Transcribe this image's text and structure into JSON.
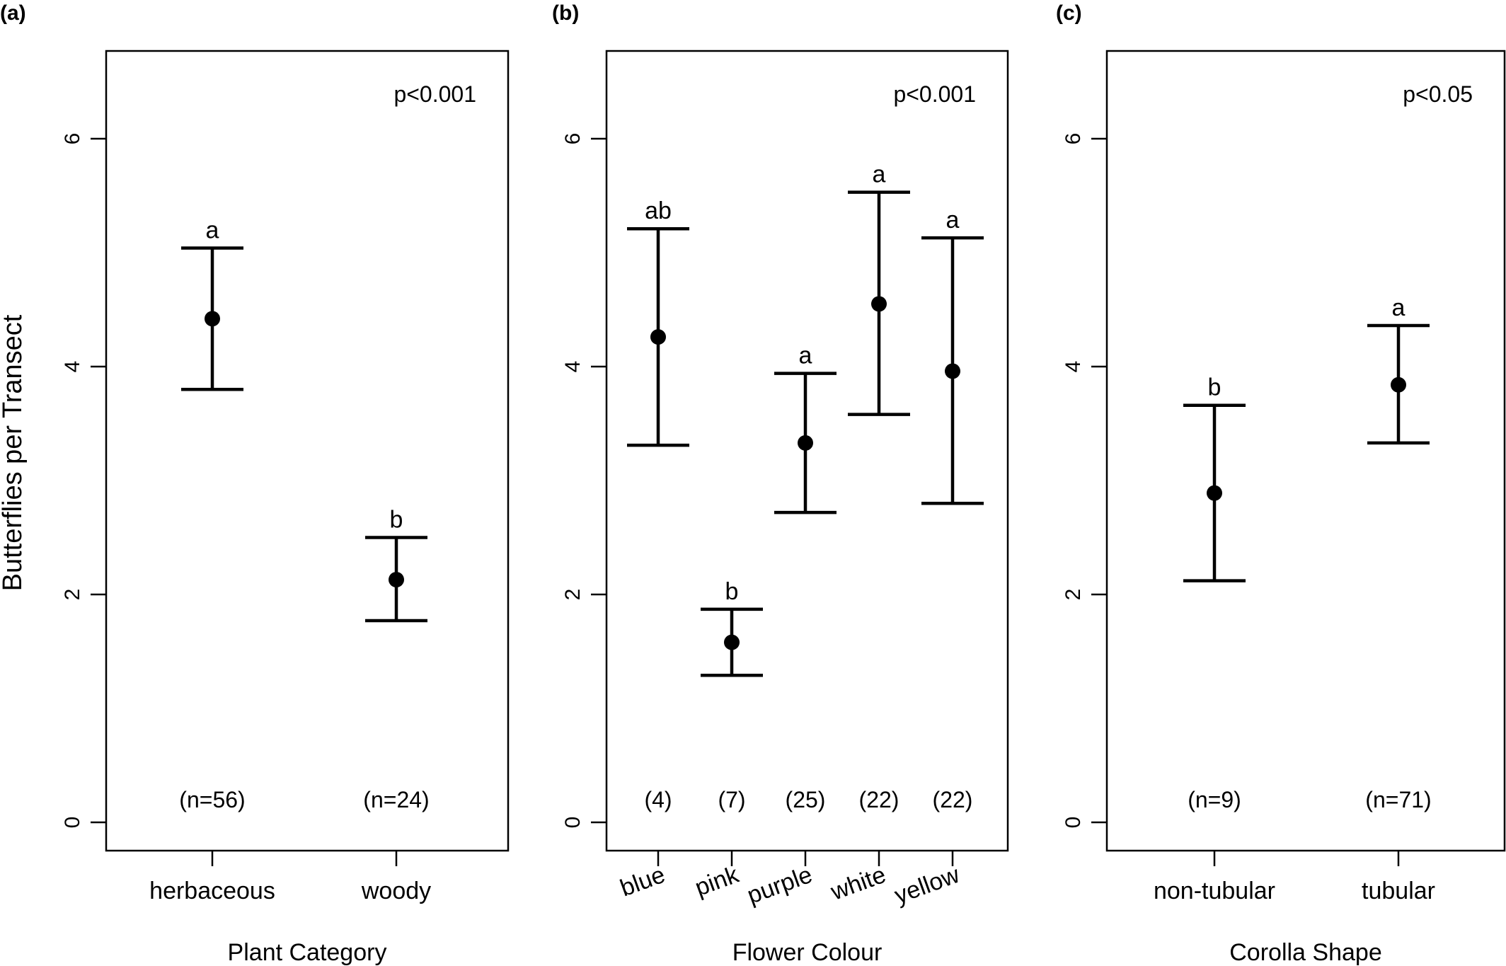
{
  "ylabel": "Butterflies per Transect",
  "chart_data": [
    {
      "type": "scatter",
      "panel_label": "(a)",
      "title": "",
      "xlabel": "Plant Category",
      "ylabel": "Butterflies per Transect",
      "ylim": [
        0,
        6.8
      ],
      "yticks": [
        "0",
        "2",
        "4",
        "6"
      ],
      "ytick_values": [
        0,
        2,
        4,
        6
      ],
      "p_value": "p<0.001",
      "categories": [
        "herbaceous",
        "woody"
      ],
      "rotate_xticks": false,
      "points": [
        {
          "category": "herbaceous",
          "mean": 4.42,
          "lower": 3.8,
          "upper": 5.04,
          "letter": "a",
          "n": "(n=56)"
        },
        {
          "category": "woody",
          "mean": 2.13,
          "lower": 1.77,
          "upper": 2.5,
          "letter": "b",
          "n": "(n=24)"
        }
      ]
    },
    {
      "type": "scatter",
      "panel_label": "(b)",
      "title": "",
      "xlabel": "Flower Colour",
      "ylabel": "",
      "ylim": [
        0,
        6.8
      ],
      "yticks": [
        "0",
        "2",
        "4",
        "6"
      ],
      "ytick_values": [
        0,
        2,
        4,
        6
      ],
      "p_value": "p<0.001",
      "categories": [
        "blue",
        "pink",
        "purple",
        "white",
        "yellow"
      ],
      "rotate_xticks": true,
      "points": [
        {
          "category": "blue",
          "mean": 4.26,
          "lower": 3.31,
          "upper": 5.21,
          "letter": "ab",
          "n": "(4)"
        },
        {
          "category": "pink",
          "mean": 1.58,
          "lower": 1.29,
          "upper": 1.87,
          "letter": "b",
          "n": "(7)"
        },
        {
          "category": "purple",
          "mean": 3.33,
          "lower": 2.72,
          "upper": 3.94,
          "letter": "a",
          "n": "(25)"
        },
        {
          "category": "white",
          "mean": 4.55,
          "lower": 3.58,
          "upper": 5.53,
          "letter": "a",
          "n": "(22)"
        },
        {
          "category": "yellow",
          "mean": 3.96,
          "lower": 2.8,
          "upper": 5.13,
          "letter": "a",
          "n": "(22)"
        }
      ]
    },
    {
      "type": "scatter",
      "panel_label": "(c)",
      "title": "",
      "xlabel": "Corolla Shape",
      "ylabel": "",
      "ylim": [
        0,
        6.8
      ],
      "yticks": [
        "0",
        "2",
        "4",
        "6"
      ],
      "ytick_values": [
        0,
        2,
        4,
        6
      ],
      "p_value": "p<0.05",
      "categories": [
        "non-tubular",
        "tubular"
      ],
      "rotate_xticks": false,
      "points": [
        {
          "category": "non-tubular",
          "mean": 2.89,
          "lower": 2.12,
          "upper": 3.66,
          "letter": "b",
          "n": "(n=9)"
        },
        {
          "category": "tubular",
          "mean": 3.84,
          "lower": 3.33,
          "upper": 4.36,
          "letter": "a",
          "n": "(n=71)"
        }
      ]
    }
  ]
}
